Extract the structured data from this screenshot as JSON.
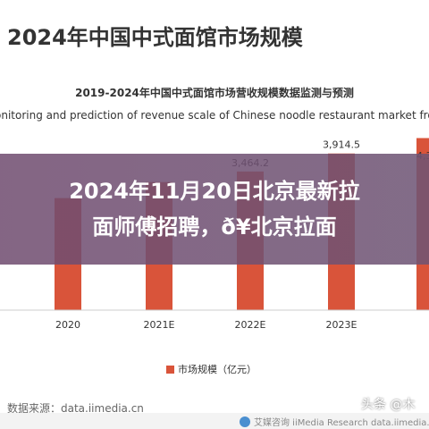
{
  "page": {
    "title": "2024年中国中式面馆市场规模",
    "overlay_line1": "2024年11月20日北京最新拉",
    "overlay_line2": "面师傅招聘，ð¥北京拉面",
    "source": "数据来源：data.iimedia.cn",
    "footer_text": "艾媒咨询 iiMedia Research  data.iimedia.cn",
    "watermark": "头条 @木"
  },
  "colors": {
    "bar": "#d9543a",
    "axis": "#cccccc",
    "overlay": "#704c70",
    "text": "#333333"
  },
  "chart_data": {
    "type": "bar",
    "title": "2019-2024年中国中式面馆市场营收规模数据监测与预测",
    "subtitle": "onitoring and prediction of revenue scale of Chinese noodle restaurant market from 2019",
    "categories": [
      "2020",
      "2021E",
      "2022E",
      "2023E"
    ],
    "values": [
      2800,
      3200,
      3464.2,
      3914.5
    ],
    "value_labels": [
      "",
      "",
      "3,464.2",
      "3,914.5"
    ],
    "partial_label": "4,3",
    "legend": "市场规模（亿元）",
    "legend_position": "bottom",
    "ylim": [
      0,
      4400
    ],
    "grid": false
  }
}
